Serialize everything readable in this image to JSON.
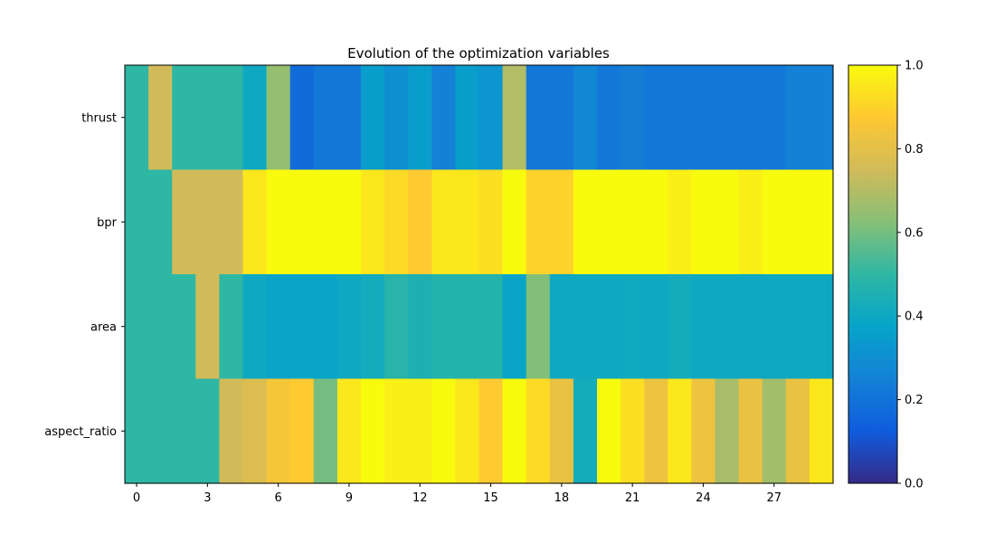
{
  "chart_data": {
    "type": "heatmap",
    "title": "Evolution of the optimization variables",
    "xlabel": "",
    "ylabel": "",
    "rows": [
      "thrust",
      "bpr",
      "area",
      "aspect_ratio"
    ],
    "x_ticks": [
      0,
      3,
      6,
      9,
      12,
      15,
      18,
      21,
      24,
      27
    ],
    "n_columns": 30,
    "values": [
      [
        0.5,
        0.75,
        0.5,
        0.5,
        0.5,
        0.4,
        0.65,
        0.18,
        0.22,
        0.22,
        0.35,
        0.3,
        0.35,
        0.25,
        0.35,
        0.32,
        0.7,
        0.22,
        0.22,
        0.27,
        0.22,
        0.24,
        0.22,
        0.22,
        0.22,
        0.22,
        0.22,
        0.22,
        0.25,
        0.25
      ],
      [
        0.5,
        0.5,
        0.75,
        0.75,
        0.75,
        0.95,
        1.0,
        1.0,
        1.0,
        1.0,
        0.95,
        0.92,
        0.88,
        0.95,
        0.95,
        0.93,
        1.0,
        0.9,
        0.9,
        1.0,
        1.0,
        1.0,
        1.0,
        0.97,
        1.0,
        1.0,
        0.97,
        1.0,
        1.0,
        1.0
      ],
      [
        0.5,
        0.5,
        0.5,
        0.75,
        0.5,
        0.4,
        0.38,
        0.38,
        0.38,
        0.4,
        0.42,
        0.48,
        0.45,
        0.47,
        0.47,
        0.47,
        0.38,
        0.62,
        0.4,
        0.4,
        0.4,
        0.41,
        0.4,
        0.42,
        0.4,
        0.4,
        0.4,
        0.4,
        0.4,
        0.4
      ],
      [
        0.5,
        0.5,
        0.5,
        0.5,
        0.75,
        0.78,
        0.85,
        0.88,
        0.6,
        0.95,
        1.0,
        0.97,
        0.97,
        1.0,
        0.95,
        0.88,
        1.0,
        0.92,
        0.82,
        0.42,
        1.0,
        0.93,
        0.83,
        0.95,
        0.83,
        0.68,
        0.82,
        0.67,
        0.82,
        0.95
      ]
    ],
    "vmin": 0.0,
    "vmax": 1.0,
    "colorbar_ticks": [
      "0.0",
      "0.2",
      "0.4",
      "0.6",
      "0.8",
      "1.0"
    ],
    "colormap": "parula",
    "colormap_stops": [
      "#352a87",
      "#0f5cdd",
      "#1481d6",
      "#06a4ca",
      "#2eb7a4",
      "#87bf77",
      "#d1bb59",
      "#fec832",
      "#f9fb0e"
    ]
  }
}
